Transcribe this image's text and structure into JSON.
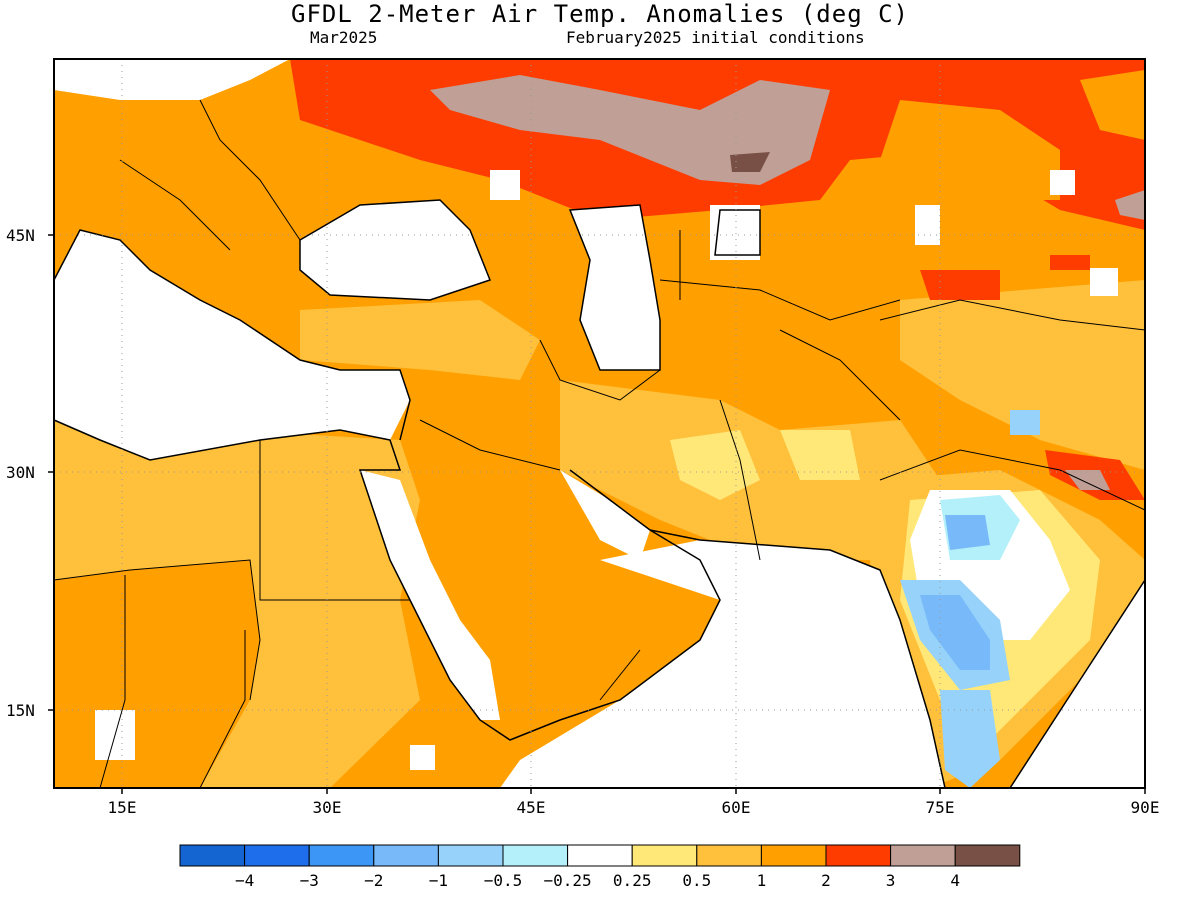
{
  "title": "GFDL 2-Meter Air Temp. Anomalies (deg C)",
  "subtitle_left": "Mar2025",
  "subtitle_right": "February2025 initial conditions",
  "axes": {
    "lat_labels": [
      "45N",
      "30N",
      "15N"
    ],
    "lon_labels": [
      "15E",
      "30E",
      "45E",
      "60E",
      "75E",
      "90E"
    ]
  },
  "colorbar": {
    "labels": [
      "-4",
      "-3",
      "-2",
      "-1",
      "-0.5",
      "-0.25",
      "0.25",
      "0.5",
      "1",
      "2",
      "3",
      "4"
    ],
    "colors": [
      "#1464d2",
      "#1e6eeb",
      "#3c96f5",
      "#78b9fa",
      "#96d2fa",
      "#b4f0fa",
      "#ffffff",
      "#ffe878",
      "#ffc03c",
      "#ffa000",
      "#ff3c00",
      "#c0a096",
      "#785046"
    ]
  },
  "chart_data": {
    "type": "heatmap",
    "title": "GFDL 2-Meter Air Temp. Anomalies (deg C)",
    "subtitle": "Mar2025 / February2025 initial conditions",
    "lon_range": [
      10,
      90
    ],
    "lat_range": [
      10,
      55
    ],
    "units": "deg C",
    "levels": [
      -4,
      -3,
      -2,
      -1,
      -0.5,
      -0.25,
      0.25,
      0.5,
      1,
      2,
      3,
      4
    ]
  }
}
